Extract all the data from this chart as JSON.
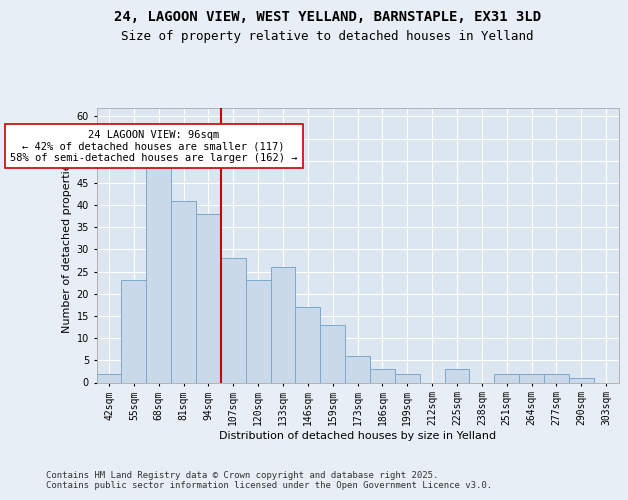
{
  "title_line1": "24, LAGOON VIEW, WEST YELLAND, BARNSTAPLE, EX31 3LD",
  "title_line2": "Size of property relative to detached houses in Yelland",
  "xlabel": "Distribution of detached houses by size in Yelland",
  "ylabel": "Number of detached properties",
  "categories": [
    "42sqm",
    "55sqm",
    "68sqm",
    "81sqm",
    "94sqm",
    "107sqm",
    "120sqm",
    "133sqm",
    "146sqm",
    "159sqm",
    "173sqm",
    "186sqm",
    "199sqm",
    "212sqm",
    "225sqm",
    "238sqm",
    "251sqm",
    "264sqm",
    "277sqm",
    "290sqm",
    "303sqm"
  ],
  "values": [
    2,
    23,
    50,
    41,
    38,
    28,
    23,
    26,
    17,
    13,
    6,
    3,
    2,
    0,
    3,
    0,
    2,
    2,
    2,
    1,
    0
  ],
  "bar_color": "#c9d9ea",
  "bar_edge_color": "#7aa8cc",
  "red_line_x": 4.5,
  "annotation_text": "24 LAGOON VIEW: 96sqm\n← 42% of detached houses are smaller (117)\n58% of semi-detached houses are larger (162) →",
  "annotation_box_color": "#ffffff",
  "annotation_box_edge": "#cc0000",
  "red_line_color": "#cc0000",
  "ylim": [
    0,
    62
  ],
  "yticks": [
    0,
    5,
    10,
    15,
    20,
    25,
    30,
    35,
    40,
    45,
    50,
    55,
    60
  ],
  "background_color": "#e8eef5",
  "plot_bg_color": "#dce6f0",
  "grid_color": "#ffffff",
  "footer_text": "Contains HM Land Registry data © Crown copyright and database right 2025.\nContains public sector information licensed under the Open Government Licence v3.0.",
  "title_fontsize": 10,
  "subtitle_fontsize": 9,
  "axis_label_fontsize": 8,
  "tick_fontsize": 7,
  "annotation_fontsize": 7.5,
  "footer_fontsize": 6.5
}
